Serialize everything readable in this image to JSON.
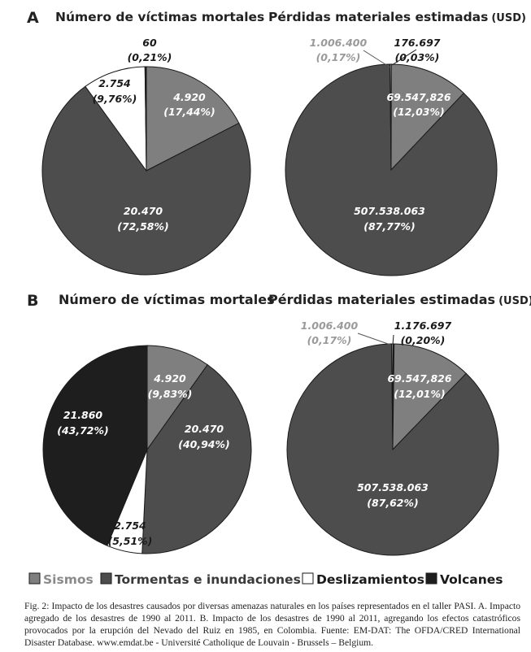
{
  "colors": {
    "sismos": "#7f7f7f",
    "tormentas": "#4d4d4d",
    "deslizamientos": "#ffffff",
    "volcanes": "#1e1e1e",
    "edge": "#1a1a1a"
  },
  "panels": [
    {
      "letter": "A"
    },
    {
      "letter": "B"
    }
  ],
  "legend": [
    {
      "label": "Sismos",
      "color": "#7f7f7f",
      "text_color": "#8a8a8a"
    },
    {
      "label": "Tormentas e inundaciones",
      "color": "#4d4d4d",
      "text_color": "#3a3a3a"
    },
    {
      "label": "Deslizamientos",
      "color": "#ffffff",
      "text_color": "#1a1a1a"
    },
    {
      "label": "Volcanes",
      "color": "#1e1e1e",
      "text_color": "#1a1a1a"
    }
  ],
  "caption": "Fig. 2: Impacto de los desastres causados por diversas amenazas naturales en los países representados en el taller PASI. A. Impacto agregado de los desastres de 1990 al 2011. B. Impacto de los desastres de 1990 al 2011, agregando los efectos catastróficos provocados por la erupción del Nevado del Ruiz en 1985, en Colombia. Fuente: EM-DAT: The OFDA/CRED International Disaster Database. www.emdat.be - Université Catholique de Louvain - Brussels – Belgium.",
  "chart_data": [
    {
      "type": "pie",
      "panel": "A",
      "title": "Número de víctimas mortales",
      "slices": [
        {
          "category": "Sismos",
          "value": 4920,
          "label": "4.920",
          "pct": "(17,44%)"
        },
        {
          "category": "Tormentas e inundaciones",
          "value": 20470,
          "label": "20.470",
          "pct": "(72,58%)"
        },
        {
          "category": "Deslizamientos",
          "value": 2754,
          "label": "2.754",
          "pct": "(9,76%)"
        },
        {
          "category": "Volcanes",
          "value": 60,
          "label": "60",
          "pct": "(0,21%)"
        }
      ]
    },
    {
      "type": "pie",
      "panel": "A",
      "title": "Pérdidas materiales estimadas",
      "title_unit": "(USD)",
      "slices": [
        {
          "category": "Volcanes",
          "value": 176697,
          "label": "176.697",
          "pct": "(0,03%)"
        },
        {
          "category": "Sismos",
          "value": 69547826,
          "label": "69.547,826",
          "pct": "(12,03%)"
        },
        {
          "category": "Tormentas e inundaciones",
          "value": 507538063,
          "label": "507.538.063",
          "pct": "(87,77%)"
        },
        {
          "category": "Deslizamientos",
          "value": 1006400,
          "label": "1.006.400",
          "pct": "(0,17%)"
        }
      ]
    },
    {
      "type": "pie",
      "panel": "B",
      "title": "Número de víctimas mortales",
      "slices": [
        {
          "category": "Sismos",
          "value": 4920,
          "label": "4.920",
          "pct": "(9,83%)"
        },
        {
          "category": "Tormentas e inundaciones",
          "value": 20470,
          "label": "20.470",
          "pct": "(40,94%)"
        },
        {
          "category": "Deslizamientos",
          "value": 2754,
          "label": "2.754",
          "pct": "(5,51%)"
        },
        {
          "category": "Volcanes",
          "value": 21860,
          "label": "21.860",
          "pct": "(43,72%)"
        }
      ]
    },
    {
      "type": "pie",
      "panel": "B",
      "title": "Pérdidas materiales estimadas",
      "title_unit": "(USD)",
      "slices": [
        {
          "category": "Volcanes",
          "value": 1176697,
          "label": "1.176.697",
          "pct": "(0,20%)"
        },
        {
          "category": "Sismos",
          "value": 69547826,
          "label": "69.547,826",
          "pct": "(12,01%)"
        },
        {
          "category": "Tormentas e inundaciones",
          "value": 507538063,
          "label": "507.538.063",
          "pct": "(87,62%)"
        },
        {
          "category": "Deslizamientos",
          "value": 1006400,
          "label": "1.006.400",
          "pct": "(0,17%)"
        }
      ]
    }
  ]
}
